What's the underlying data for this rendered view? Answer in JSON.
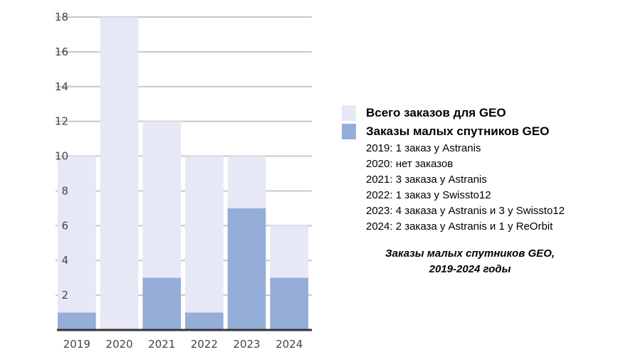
{
  "chart_data": {
    "type": "bar",
    "categories": [
      "2019",
      "2020",
      "2021",
      "2022",
      "2023",
      "2024"
    ],
    "series": [
      {
        "name": "Всего заказов для GEO",
        "values": [
          10,
          18,
          12,
          10,
          10,
          6
        ]
      },
      {
        "name": "Заказы малых спутников GEO",
        "values": [
          1,
          0,
          3,
          1,
          7,
          3
        ]
      }
    ],
    "yticks": [
      2,
      4,
      6,
      8,
      10,
      12,
      14,
      16,
      18
    ],
    "ylim": [
      0,
      18
    ],
    "grid": true,
    "overlapping_bars": true,
    "legend_position": "right",
    "title": "",
    "xlabel": "",
    "ylabel": ""
  },
  "colors": {
    "total": "#e6e9f5",
    "small": "#94aed9",
    "grid": "#c8c8c8",
    "axis": "#333333"
  },
  "legend": {
    "items": [
      {
        "label": "Всего заказов для GEO",
        "color": "#e6e9f5"
      },
      {
        "label": "Заказы малых спутников GEO",
        "color": "#94aed9"
      }
    ]
  },
  "notes": [
    "2019: 1 заказ у Astranis",
    "2020: нет заказов",
    "2021: 3 заказа у Astranis",
    "2022: 1 заказ у Swissto12",
    "2023: 4 заказа у Astranis и 3 у Swissto12",
    "2024: 2 заказа у Astranis и 1 у ReOrbit"
  ],
  "caption": {
    "line1": "Заказы малых спутников GEO,",
    "line2": "2019-2024 годы"
  }
}
